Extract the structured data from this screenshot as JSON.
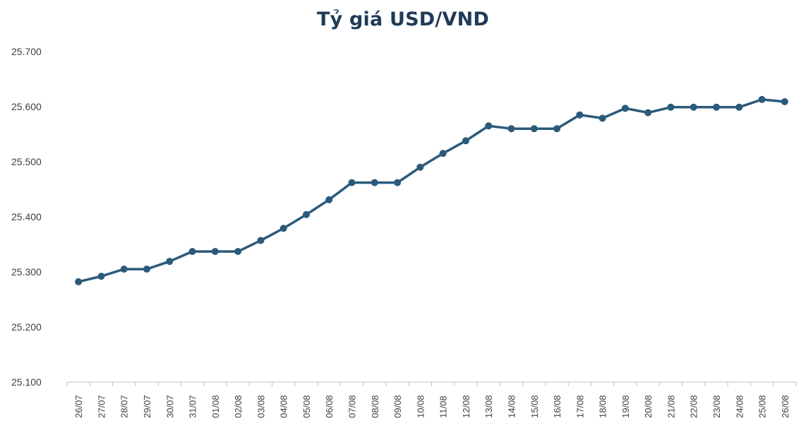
{
  "chart_data": {
    "type": "line",
    "title": "Tỷ giá USD/VND",
    "xlabel": "",
    "ylabel": "",
    "ylim": [
      25100,
      25700
    ],
    "yticks": [
      25100,
      25200,
      25300,
      25400,
      25500,
      25600,
      25700
    ],
    "ytick_labels": [
      "25.100",
      "25.200",
      "25.300",
      "25.400",
      "25.500",
      "25.600",
      "25.700"
    ],
    "grid": false,
    "legend": "none",
    "categories": [
      "26/07",
      "27/07",
      "28/07",
      "29/07",
      "30/07",
      "31/07",
      "01/08",
      "02/08",
      "03/08",
      "04/08",
      "05/08",
      "06/08",
      "07/08",
      "08/08",
      "09/08",
      "10/08",
      "11/08",
      "12/08",
      "13/08",
      "14/08",
      "15/08",
      "16/08",
      "17/08",
      "18/08",
      "19/08",
      "20/08",
      "21/08",
      "22/08",
      "23/08",
      "24/08",
      "25/08",
      "26/08"
    ],
    "series": [
      {
        "color": "#2b5a7a",
        "values": [
          25282,
          25292,
          25305,
          25305,
          25319,
          25337,
          25337,
          25337,
          25357,
          25379,
          25404,
          25431,
          25462,
          25462,
          25462,
          25490,
          25515,
          25538,
          25565,
          25560,
          25560,
          25560,
          25585,
          25579,
          25597,
          25589,
          25599,
          25599,
          25599,
          25599,
          25613,
          25609
        ]
      }
    ]
  }
}
